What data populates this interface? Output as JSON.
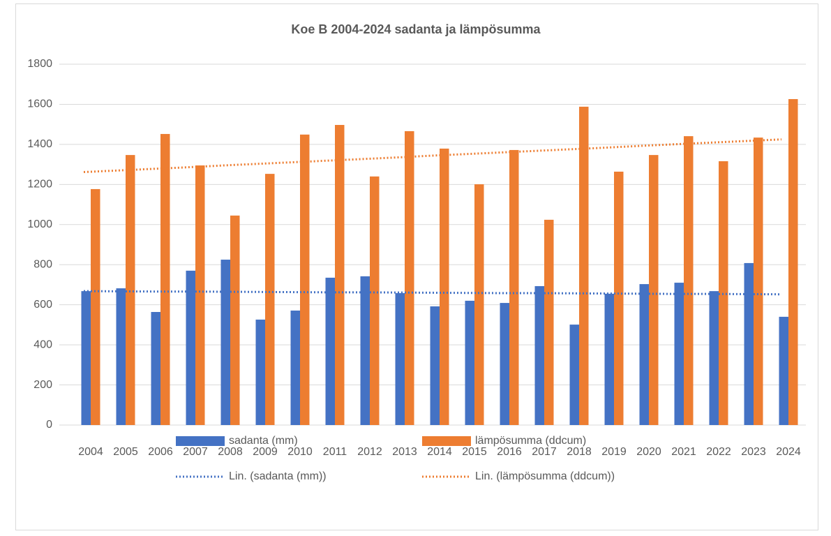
{
  "chart_data": {
    "type": "bar",
    "title": "Koe B 2004-2024 sadanta ja lämpösumma",
    "categories": [
      "2004",
      "2005",
      "2006",
      "2007",
      "2008",
      "2009",
      "2010",
      "2011",
      "2012",
      "2013",
      "2014",
      "2015",
      "2016",
      "2017",
      "2018",
      "2019",
      "2020",
      "2021",
      "2022",
      "2023",
      "2024"
    ],
    "series": [
      {
        "name": "sadanta (mm)",
        "color": "#4472c4",
        "type": "bar",
        "values": [
          668,
          682,
          564,
          770,
          825,
          526,
          571,
          735,
          742,
          658,
          592,
          620,
          609,
          693,
          501,
          655,
          703,
          710,
          668,
          808,
          540
        ]
      },
      {
        "name": "lämpösumma (ddcum)",
        "color": "#ed7d31",
        "type": "bar",
        "values": [
          1177,
          1347,
          1452,
          1295,
          1045,
          1253,
          1449,
          1497,
          1240,
          1466,
          1379,
          1201,
          1372,
          1024,
          1588,
          1264,
          1347,
          1441,
          1316,
          1434,
          1626
        ]
      },
      {
        "name": "Lin. (sadanta (mm))",
        "color": "#4472c4",
        "type": "trend",
        "values": [
          668,
          667,
          666,
          666,
          665,
          664,
          663,
          662,
          662,
          661,
          660,
          659,
          658,
          658,
          657,
          656,
          655,
          654,
          654,
          653,
          652
        ]
      },
      {
        "name": "Lin. (lämpösumma (ddcum))",
        "color": "#ed7d31",
        "type": "trend",
        "values": [
          1262,
          1270,
          1278,
          1286,
          1295,
          1303,
          1311,
          1319,
          1327,
          1335,
          1344,
          1352,
          1360,
          1368,
          1376,
          1384,
          1393,
          1401,
          1409,
          1417,
          1425
        ]
      }
    ],
    "ylim": [
      0,
      1800
    ],
    "yticks": [
      0,
      200,
      400,
      600,
      800,
      1000,
      1200,
      1400,
      1600,
      1800
    ],
    "grid": true,
    "legend": "bottom"
  }
}
